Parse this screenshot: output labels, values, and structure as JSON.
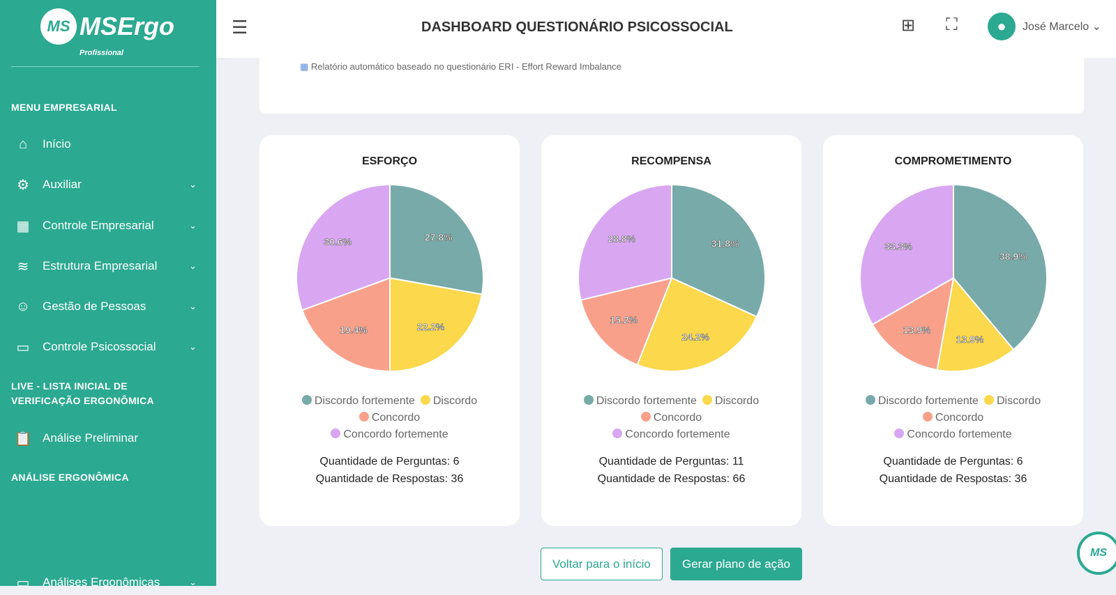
{
  "sidebar": {
    "logo": "MSErgo",
    "logo_sub": "Profissional",
    "logo_mark": "MS",
    "section1": "MENU EMPRESARIAL",
    "items": [
      {
        "label": "Início",
        "icon": "home-icon"
      },
      {
        "label": "Auxiliar",
        "icon": "gear-icon"
      },
      {
        "label": "Controle Empresarial",
        "icon": "building-icon"
      },
      {
        "label": "Estrutura Empresarial",
        "icon": "layers-icon"
      },
      {
        "label": "Gestão de Pessoas",
        "icon": "users-icon"
      },
      {
        "label": "Controle Psicossocial",
        "icon": "book-icon"
      }
    ],
    "section2": "LIVE - LISTA INICIAL DE VERIFICAÇÃO ERGONÔMICA",
    "item_analise": "Análise Preliminar",
    "section3": "ANÁLISE ERGONÔMICA",
    "item_analises": "Análises Ergonômicas"
  },
  "header": {
    "title": "DASHBOARD QUESTIONÁRIO PSICOSSOCIAL",
    "user": "José Marcelo"
  },
  "subtitle": "Relatório automático baseado no questionário ERI - Effort Reward Imbalance",
  "colors": {
    "primary": "#2ba991",
    "series": [
      "#77aaa9",
      "#fbd84c",
      "#f9a08b",
      "#d9a6f2"
    ]
  },
  "chart_data": [
    {
      "type": "pie",
      "title": "ESFORÇO",
      "categories": [
        "Discordo fortemente",
        "Discordo",
        "Concordo",
        "Concordo fortemente"
      ],
      "values": [
        27.8,
        22.2,
        19.4,
        30.6
      ],
      "questions": "Quantidade de Perguntas: 6",
      "answers": "Quantidade de Respostas: 36"
    },
    {
      "type": "pie",
      "title": "RECOMPENSA",
      "categories": [
        "Discordo fortemente",
        "Discordo",
        "Concordo",
        "Concordo fortemente"
      ],
      "values": [
        31.8,
        24.2,
        15.2,
        28.8
      ],
      "questions": "Quantidade de Perguntas: 11",
      "answers": "Quantidade de Respostas: 66"
    },
    {
      "type": "pie",
      "title": "COMPROMETIMENTO",
      "categories": [
        "Discordo fortemente",
        "Discordo",
        "Concordo",
        "Concordo fortemente"
      ],
      "values": [
        38.9,
        13.9,
        13.9,
        33.3
      ],
      "questions": "Quantidade de Perguntas: 6",
      "answers": "Quantidade de Respostas: 36"
    }
  ],
  "buttons": {
    "back": "Voltar para o início",
    "plan": "Gerar plano de ação"
  }
}
